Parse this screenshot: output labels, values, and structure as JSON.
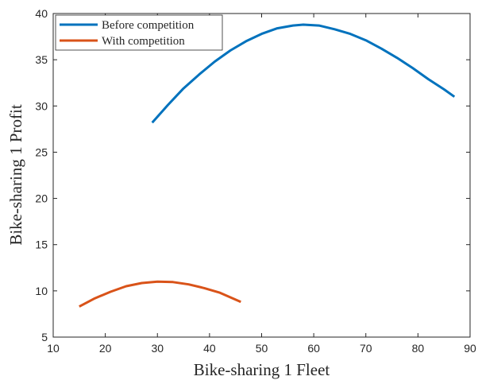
{
  "chart_data": {
    "type": "line",
    "xlabel": "Bike-sharing 1 Fleet",
    "ylabel": "Bike-sharing 1 Profit",
    "xlim": [
      10,
      90
    ],
    "ylim": [
      5,
      40
    ],
    "xticks": [
      10,
      20,
      30,
      40,
      50,
      60,
      70,
      80,
      90
    ],
    "yticks": [
      5,
      10,
      15,
      20,
      25,
      30,
      35,
      40
    ],
    "grid": false,
    "legend": {
      "placement": "top-left"
    },
    "series": [
      {
        "name": "Before competition",
        "color": "#0072BD",
        "x": [
          29,
          32,
          35,
          38,
          41,
          44,
          47,
          50,
          53,
          56,
          58,
          61,
          64,
          67,
          70,
          73,
          76,
          79,
          82,
          85,
          87
        ],
        "y": [
          28.2,
          30.1,
          31.9,
          33.4,
          34.8,
          36.0,
          37.0,
          37.8,
          38.4,
          38.7,
          38.8,
          38.7,
          38.3,
          37.8,
          37.1,
          36.2,
          35.2,
          34.1,
          32.9,
          31.8,
          31.0
        ]
      },
      {
        "name": "With competition",
        "color": "#D95319",
        "x": [
          15,
          18,
          21,
          24,
          27,
          30,
          33,
          36,
          39,
          42,
          46
        ],
        "y": [
          8.3,
          9.2,
          9.9,
          10.5,
          10.85,
          11.0,
          10.95,
          10.7,
          10.3,
          9.8,
          8.8
        ]
      }
    ]
  }
}
